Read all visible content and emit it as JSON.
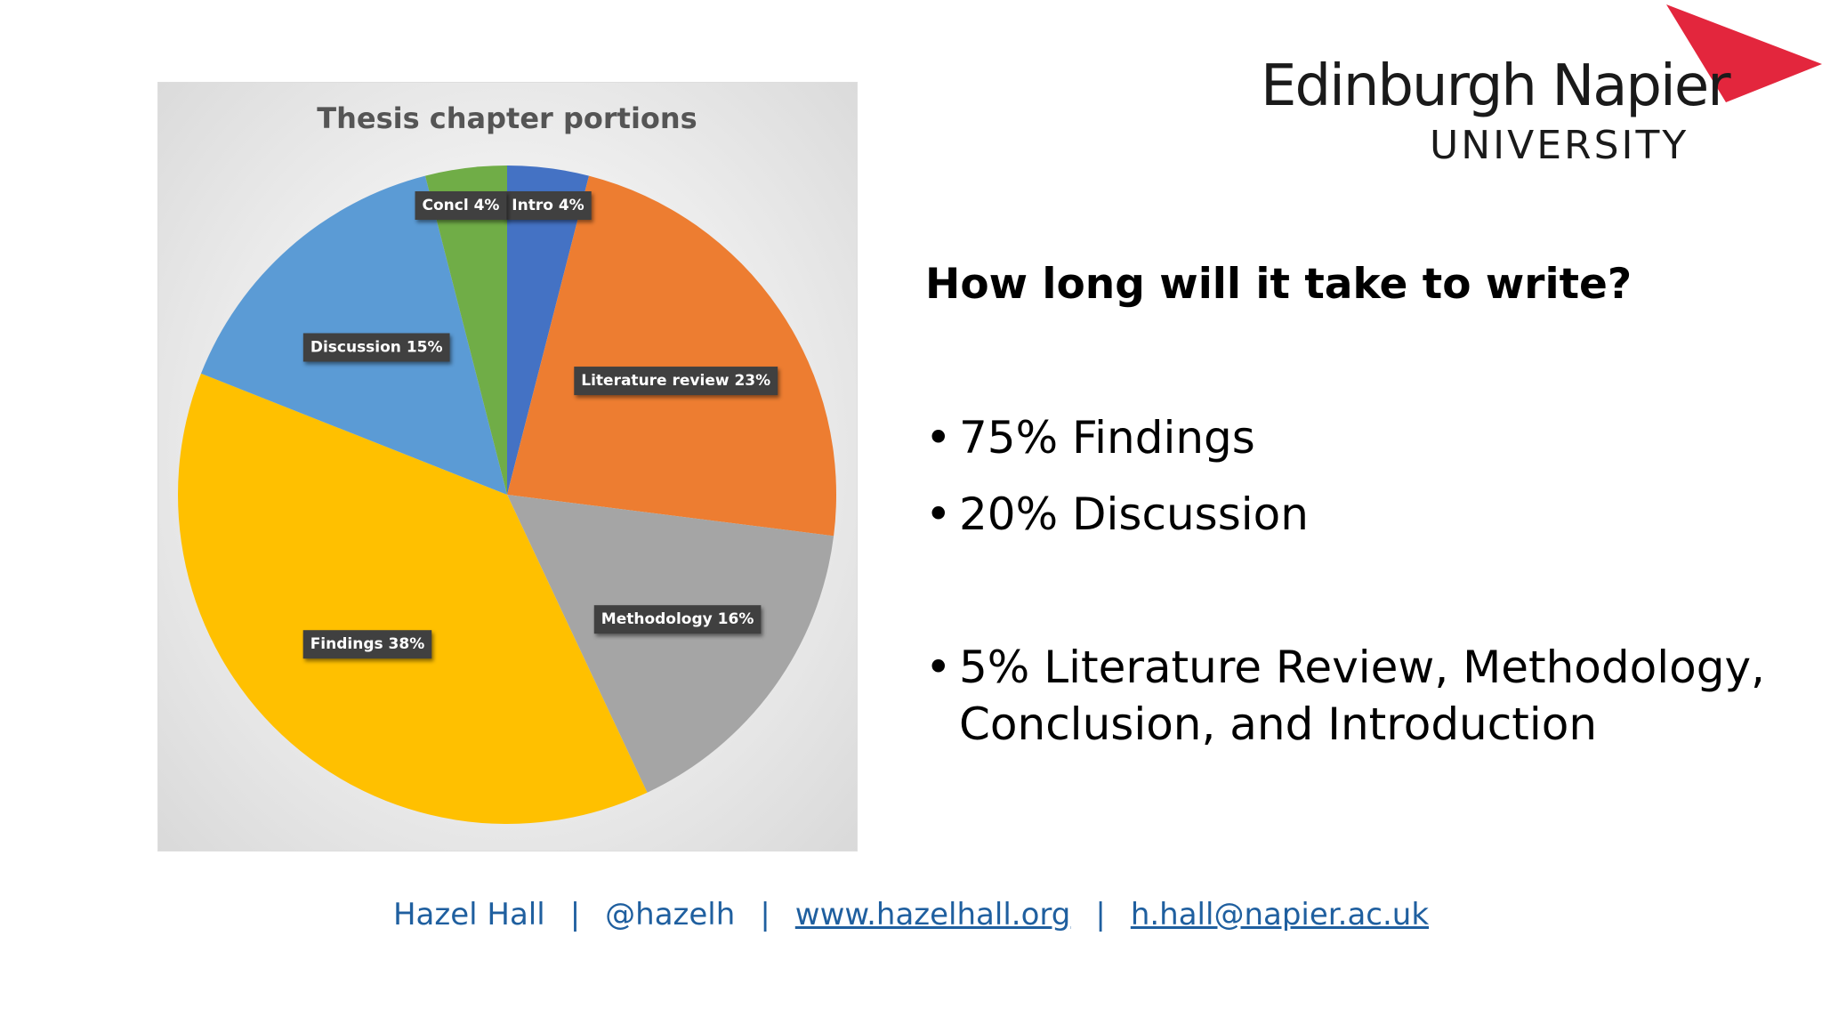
{
  "slide": {
    "heading": "How long will it take to write?",
    "bullets": [
      "75% Findings",
      "20% Discussion",
      "5% Literature Review, Methodology,",
      "Conclusion, and Introduction"
    ]
  },
  "logo": {
    "name": "Edinburgh Napier",
    "subtitle": "UNIVERSITY",
    "accent_color": "#e3263d"
  },
  "footer": {
    "name": "Hazel Hall",
    "separator": "|",
    "handle": "@hazelh",
    "website": "www.hazelhall.org",
    "email": "h.hall@napier.ac.uk"
  },
  "chart_data": {
    "type": "pie",
    "title": "Thesis chapter portions",
    "slices": [
      {
        "name": "Intro",
        "value": 4,
        "label": "Intro 4%",
        "color": "#4472c4"
      },
      {
        "name": "Literature review",
        "value": 23,
        "label": "Literature review 23%",
        "color": "#ed7d31"
      },
      {
        "name": "Methodology",
        "value": 16,
        "label": "Methodology 16%",
        "color": "#a5a5a5"
      },
      {
        "name": "Findings",
        "value": 38,
        "label": "Findings 38%",
        "color": "#ffc000"
      },
      {
        "name": "Discussion",
        "value": 15,
        "label": "Discussion 15%",
        "color": "#5b9bd5"
      },
      {
        "name": "Concl",
        "value": 4,
        "label": "Concl 4%",
        "color": "#70ad47"
      }
    ],
    "legend": "none",
    "label_background": "#404040"
  }
}
